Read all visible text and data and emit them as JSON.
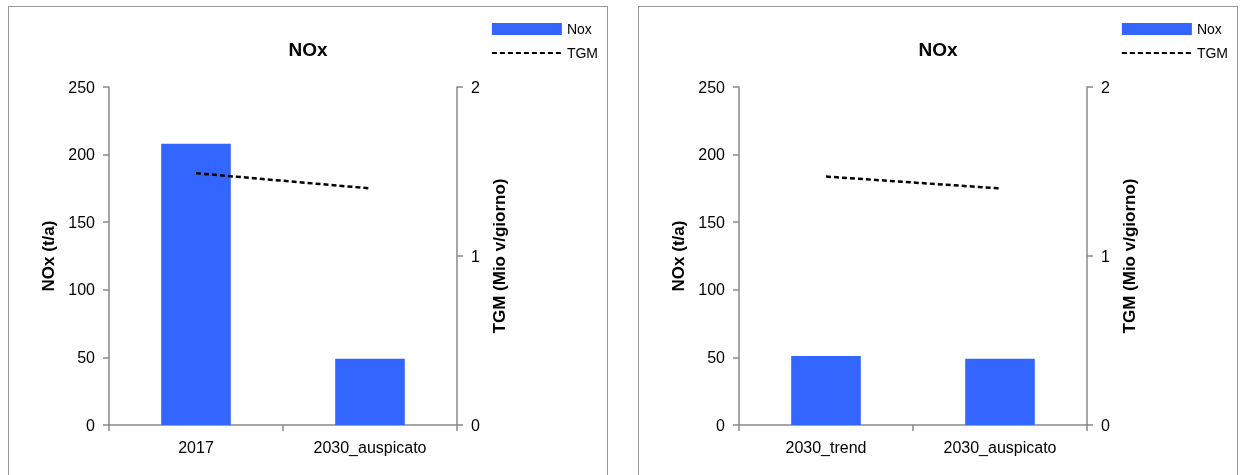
{
  "chart_data": [
    {
      "type": "bar",
      "title": "NOx",
      "ylabel": "NOx (t/a)",
      "y2label": "TGM (Mio v/giorno)",
      "categories": [
        "2017",
        "2030_auspicato"
      ],
      "series": [
        {
          "name": "Nox",
          "color": "#3366ff",
          "values": [
            208,
            49
          ]
        },
        {
          "name": "TGM",
          "type": "line",
          "axis": "y2",
          "color": "#000000",
          "line_style": "dashed",
          "marker": "none",
          "values": [
            1.49,
            1.4
          ]
        }
      ],
      "ylim": [
        0,
        250
      ],
      "yticks": [
        0,
        50,
        100,
        150,
        200,
        250
      ],
      "y2lim": [
        0,
        2
      ],
      "y2ticks": [
        0,
        1,
        2
      ],
      "legend": "top right"
    },
    {
      "type": "bar",
      "title": "NOx",
      "ylabel": "NOx (t/a)",
      "y2label": "TGM (Mio v/giorno)",
      "categories": [
        "2030_trend",
        "2030_auspicato"
      ],
      "series": [
        {
          "name": "Nox",
          "color": "#3366ff",
          "values": [
            51,
            49
          ]
        },
        {
          "name": "TGM",
          "type": "line",
          "axis": "y2",
          "color": "#000000",
          "line_style": "dashed",
          "marker": "none",
          "values": [
            1.47,
            1.4
          ]
        }
      ],
      "ylim": [
        0,
        250
      ],
      "yticks": [
        0,
        50,
        100,
        150,
        200,
        250
      ],
      "y2lim": [
        0,
        2
      ],
      "y2ticks": [
        0,
        1,
        2
      ],
      "legend": "top right"
    }
  ]
}
